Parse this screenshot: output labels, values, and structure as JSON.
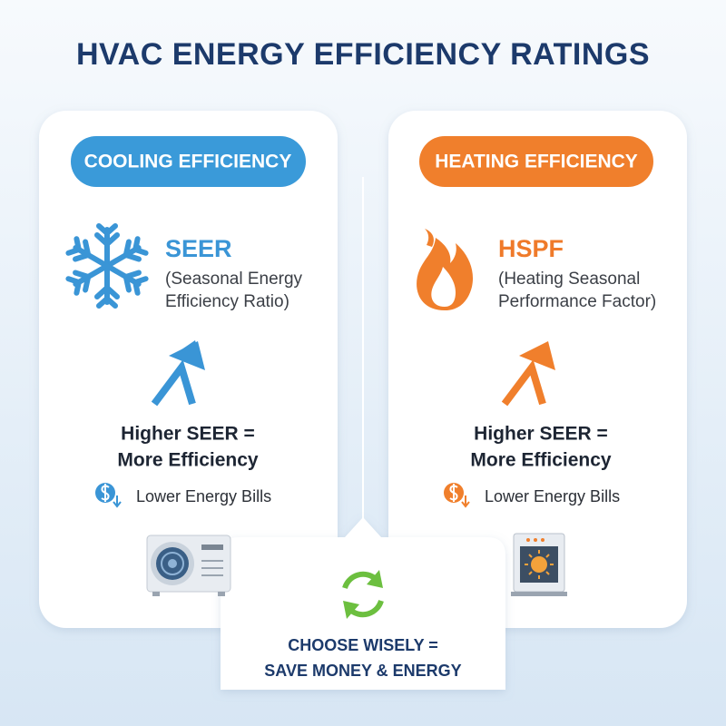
{
  "title": "HVAC ENERGY EFFICIENCY RATINGS",
  "cards": [
    {
      "badge": "COOLING EFFICIENCY",
      "acronym": "SEER",
      "description": [
        "(Seasonal Energy",
        "Efficiency Ratio)"
      ],
      "statement": [
        "Higher SEER =",
        "More Efficiency"
      ],
      "benefit": "Lower Energy Bills"
    },
    {
      "badge": "HEATING EFFICIENCY",
      "acronym": "HSPF",
      "description": [
        "(Heating Seasonal",
        "Performance Factor)"
      ],
      "statement": [
        "Higher SEER =",
        "More Efficiency"
      ],
      "benefit": "Lower Energy Bills"
    }
  ],
  "footer": [
    "CHOOSE WISELY =",
    "SAVE MONEY & ENERGY"
  ]
}
